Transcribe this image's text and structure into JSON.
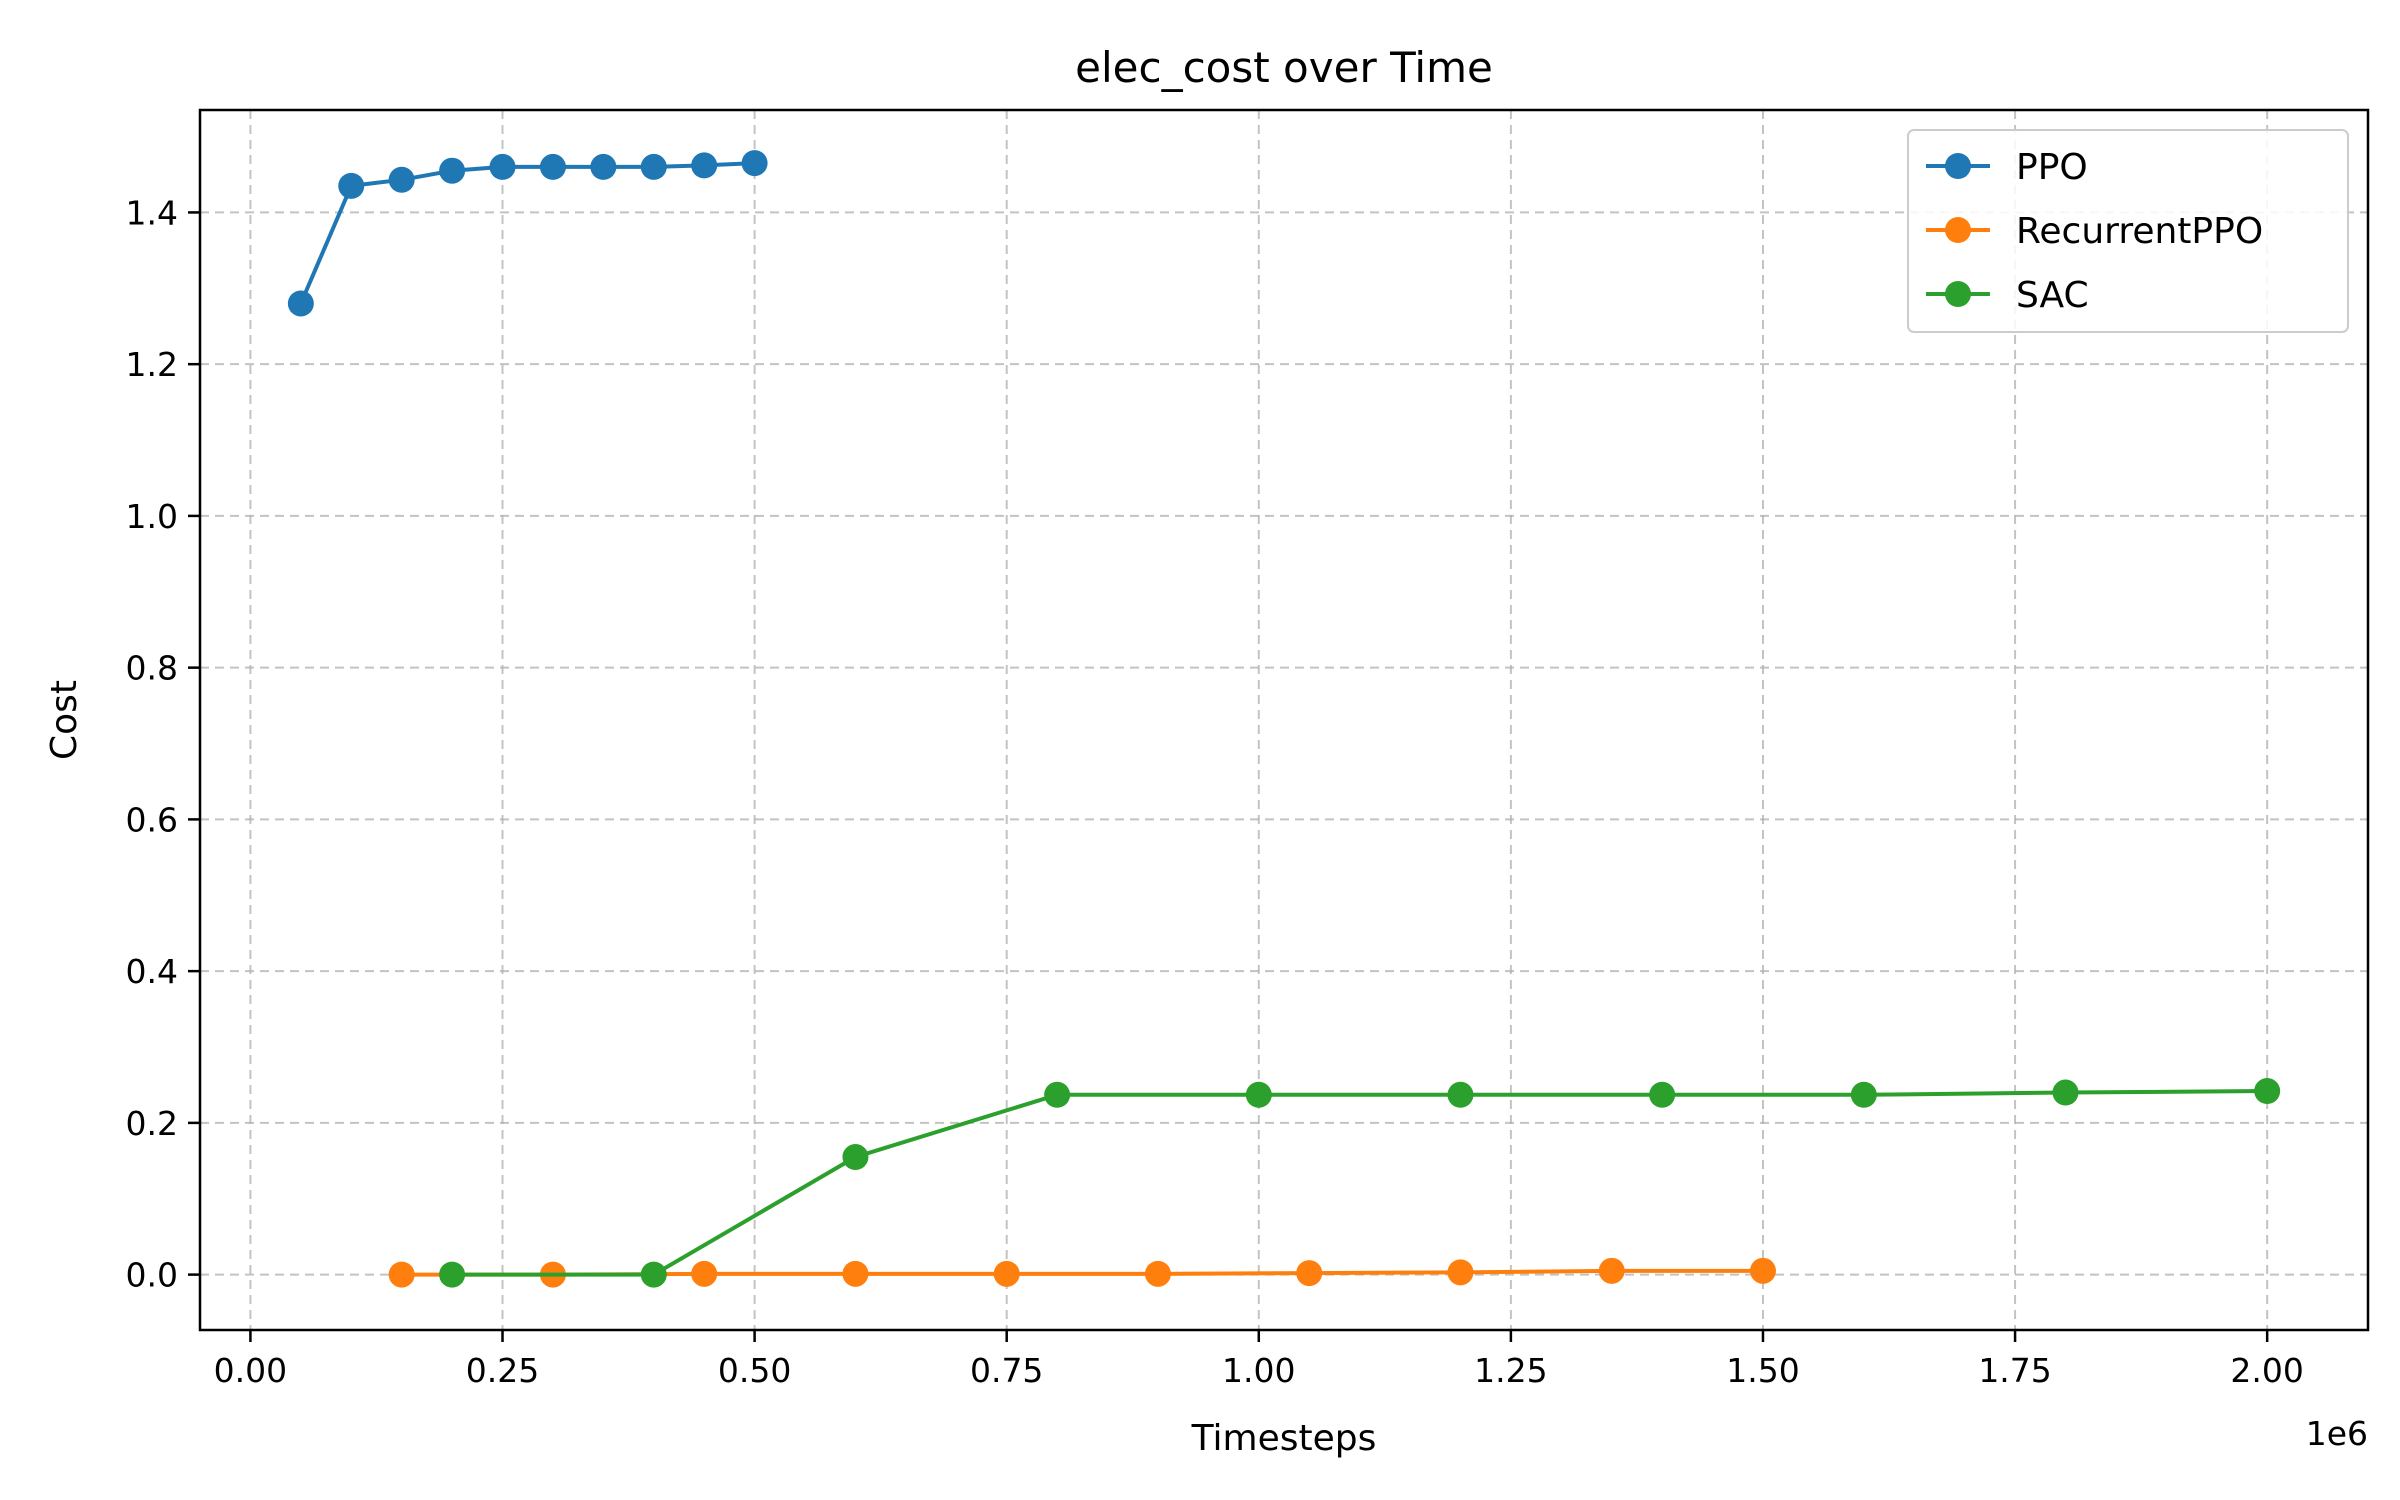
{
  "chart_data": {
    "type": "line",
    "title": "elec_cost over Time",
    "xlabel": "Timesteps",
    "ylabel": "Cost",
    "x_offset_label": "1e6",
    "xlim": [
      -50000,
      2100000
    ],
    "ylim": [
      -0.073,
      1.535
    ],
    "x_ticks": [
      0,
      250000,
      500000,
      750000,
      1000000,
      1250000,
      1500000,
      1750000,
      2000000
    ],
    "x_tick_labels": [
      "0.00",
      "0.25",
      "0.50",
      "0.75",
      "1.00",
      "1.25",
      "1.50",
      "1.75",
      "2.00"
    ],
    "y_ticks": [
      0.0,
      0.2,
      0.4,
      0.6,
      0.8,
      1.0,
      1.2,
      1.4
    ],
    "y_tick_labels": [
      "0.0",
      "0.2",
      "0.4",
      "0.6",
      "0.8",
      "1.0",
      "1.2",
      "1.4"
    ],
    "grid": true,
    "legend_position": "top-right",
    "series": [
      {
        "name": "PPO",
        "color": "#1f77b4",
        "x": [
          50000,
          100000,
          150000,
          200000,
          250000,
          300000,
          350000,
          400000,
          450000,
          500000
        ],
        "y": [
          1.28,
          1.435,
          1.443,
          1.455,
          1.46,
          1.46,
          1.46,
          1.46,
          1.462,
          1.465
        ]
      },
      {
        "name": "RecurrentPPO",
        "color": "#ff7f0e",
        "x": [
          150000,
          300000,
          450000,
          600000,
          750000,
          900000,
          1050000,
          1200000,
          1350000,
          1500000
        ],
        "y": [
          0.0,
          0.0,
          0.001,
          0.001,
          0.001,
          0.001,
          0.002,
          0.003,
          0.005,
          0.005
        ]
      },
      {
        "name": "SAC",
        "color": "#2ca02c",
        "x": [
          200000,
          400000,
          600000,
          800000,
          1000000,
          1200000,
          1400000,
          1600000,
          1800000,
          2000000
        ],
        "y": [
          0.0,
          0.0,
          0.155,
          0.237,
          0.237,
          0.237,
          0.237,
          0.237,
          0.24,
          0.242
        ]
      }
    ]
  }
}
